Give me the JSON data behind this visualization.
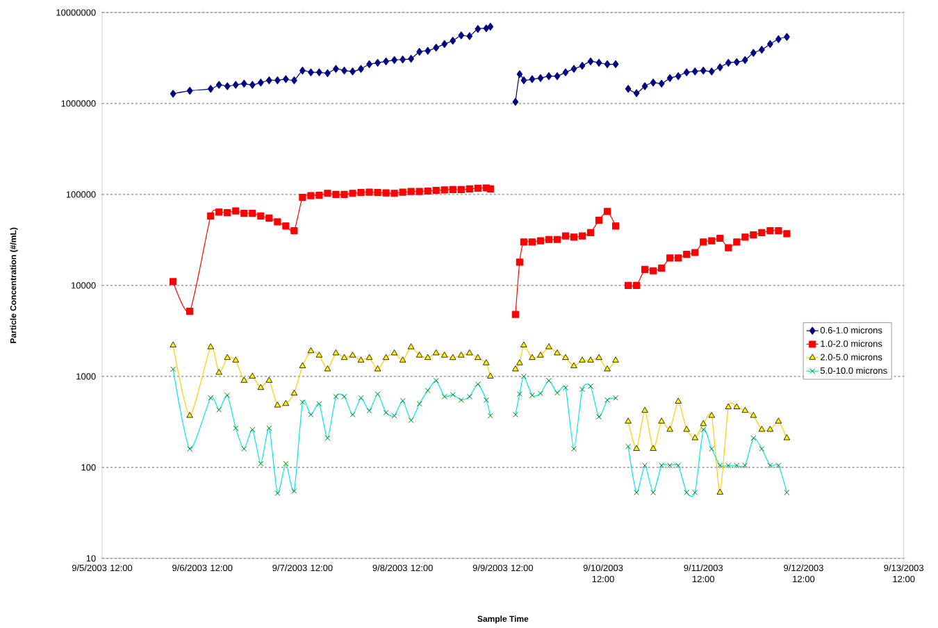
{
  "chart_data": {
    "type": "line",
    "xlabel": "Sample Time",
    "ylabel": "Particle Concentration (#/mL)",
    "log": "y",
    "grid": "y",
    "legend": "right",
    "xlim": [
      "2003-09-05T12:00",
      "2003-09-13T12:00"
    ],
    "xticks": [
      {
        "value": "2003-09-05T12:00",
        "label": "9/5/2003 12:00"
      },
      {
        "value": "2003-09-06T12:00",
        "label": "9/6/2003 12:00"
      },
      {
        "value": "2003-09-07T12:00",
        "label": "9/7/2003 12:00"
      },
      {
        "value": "2003-09-08T12:00",
        "label": "9/8/2003 12:00"
      },
      {
        "value": "2003-09-09T12:00",
        "label": "9/9/2003 12:00"
      },
      {
        "value": "2003-09-10T12:00",
        "label": "9/10/2003 12:00"
      },
      {
        "value": "2003-09-11T12:00",
        "label": "9/11/2003 12:00"
      },
      {
        "value": "2003-09-12T12:00",
        "label": "9/12/2003 12:00"
      },
      {
        "value": "2003-09-13T12:00",
        "label": "9/13/2003 12:00"
      }
    ],
    "ylim": [
      10,
      10000000
    ],
    "yticks": [
      10,
      100,
      1000,
      10000,
      100000,
      1000000,
      10000000
    ],
    "x": [
      "2003-09-06T05:00",
      "2003-09-06T09:00",
      "2003-09-06T14:00",
      "2003-09-06T16:00",
      "2003-09-06T18:00",
      "2003-09-06T20:00",
      "2003-09-06T22:00",
      "2003-09-07T00:00",
      "2003-09-07T02:00",
      "2003-09-07T04:00",
      "2003-09-07T06:00",
      "2003-09-07T08:00",
      "2003-09-07T10:00",
      "2003-09-07T12:00",
      "2003-09-07T14:00",
      "2003-09-07T16:00",
      "2003-09-07T18:00",
      "2003-09-07T20:00",
      "2003-09-07T22:00",
      "2003-09-08T00:00",
      "2003-09-08T02:00",
      "2003-09-08T04:00",
      "2003-09-08T06:00",
      "2003-09-08T08:00",
      "2003-09-08T10:00",
      "2003-09-08T12:00",
      "2003-09-08T14:00",
      "2003-09-08T16:00",
      "2003-09-08T18:00",
      "2003-09-08T20:00",
      "2003-09-08T22:00",
      "2003-09-09T00:00",
      "2003-09-09T02:00",
      "2003-09-09T04:00",
      "2003-09-09T06:00",
      "2003-09-09T08:00",
      "2003-09-09T09:00",
      "2003-09-09T12:00",
      "2003-09-09T15:00",
      "2003-09-09T16:00",
      "2003-09-09T17:00",
      "2003-09-09T19:00",
      "2003-09-09T21:00",
      "2003-09-09T23:00",
      "2003-09-10T01:00",
      "2003-09-10T03:00",
      "2003-09-10T05:00",
      "2003-09-10T07:00",
      "2003-09-10T09:00",
      "2003-09-10T11:00",
      "2003-09-10T13:00",
      "2003-09-10T15:00",
      "2003-09-10T17:00",
      "2003-09-10T18:00",
      "2003-09-10T20:00",
      "2003-09-10T22:00",
      "2003-09-11T00:00",
      "2003-09-11T02:00",
      "2003-09-11T04:00",
      "2003-09-11T06:00",
      "2003-09-11T08:00",
      "2003-09-11T10:00",
      "2003-09-11T12:00",
      "2003-09-11T14:00",
      "2003-09-11T16:00",
      "2003-09-11T18:00",
      "2003-09-11T20:00",
      "2003-09-11T22:00",
      "2003-09-12T00:00",
      "2003-09-12T02:00",
      "2003-09-12T04:00",
      "2003-09-12T06:00",
      "2003-09-12T08:00"
    ],
    "series": [
      {
        "name": "0.6-1.0 microns",
        "color": "#000080",
        "marker": "diamond",
        "values": [
          1280000,
          1380000,
          1450000,
          1600000,
          1550000,
          1600000,
          1650000,
          1600000,
          1700000,
          1800000,
          1800000,
          1850000,
          1800000,
          2300000,
          2200000,
          2200000,
          2150000,
          2400000,
          2300000,
          2250000,
          2400000,
          2700000,
          2800000,
          2900000,
          3000000,
          3050000,
          3100000,
          3700000,
          3800000,
          4100000,
          4500000,
          4900000,
          5600000,
          5500000,
          6600000,
          6700000,
          7000000,
          null,
          1040000,
          2100000,
          1800000,
          1850000,
          1900000,
          2000000,
          2000000,
          2200000,
          2400000,
          2600000,
          2900000,
          2800000,
          2700000,
          2700000,
          null,
          1450000,
          1300000,
          1550000,
          1700000,
          1650000,
          1900000,
          2000000,
          2200000,
          2250000,
          2300000,
          2250000,
          2500000,
          2800000,
          2850000,
          3000000,
          3600000,
          3900000,
          4500000,
          5100000,
          5400000
        ]
      },
      {
        "name": "1.0-2.0 microns",
        "color": "#ff0000",
        "marker": "square",
        "values": [
          11000,
          5200,
          58000,
          64000,
          63000,
          66000,
          62000,
          62000,
          58000,
          55000,
          50000,
          45000,
          40000,
          93000,
          97000,
          98000,
          103000,
          100000,
          100000,
          103000,
          105000,
          106000,
          105000,
          104000,
          103000,
          106000,
          108000,
          108000,
          109000,
          111000,
          112000,
          113000,
          113000,
          115000,
          117000,
          118000,
          115000,
          null,
          4800,
          18000,
          30000,
          30000,
          31000,
          32000,
          32000,
          35000,
          34000,
          35000,
          38000,
          52000,
          65000,
          45000,
          null,
          10000,
          10000,
          15000,
          14500,
          15500,
          20000,
          20000,
          22000,
          23000,
          30000,
          31000,
          33000,
          26000,
          30000,
          34000,
          36000,
          38000,
          40000,
          40000,
          37000
        ]
      },
      {
        "name": "2.0-5.0 microns",
        "color": "#ffcc00",
        "marker": "triangle",
        "values": [
          2200,
          370,
          2100,
          1100,
          1600,
          1500,
          900,
          1000,
          750,
          900,
          480,
          500,
          650,
          1300,
          1900,
          1700,
          1200,
          1800,
          1600,
          1700,
          1500,
          1600,
          1200,
          1600,
          1800,
          1500,
          2100,
          1700,
          1600,
          1800,
          1700,
          1600,
          1700,
          1800,
          1600,
          1400,
          1000,
          null,
          1200,
          1400,
          2200,
          1600,
          1700,
          2100,
          1800,
          1600,
          1300,
          1500,
          1500,
          1600,
          1200,
          1500,
          null,
          320,
          160,
          420,
          160,
          320,
          260,
          530,
          260,
          210,
          300,
          370,
          53,
          460,
          460,
          420,
          370,
          260,
          260,
          320,
          210
        ]
      },
      {
        "name": "5.0-10.0 microns",
        "color": "#00e5ee",
        "marker": "cross",
        "values": [
          1200,
          160,
          580,
          430,
          620,
          270,
          160,
          260,
          110,
          270,
          52,
          110,
          55,
          520,
          380,
          500,
          210,
          600,
          600,
          380,
          580,
          420,
          640,
          400,
          370,
          540,
          330,
          500,
          700,
          900,
          600,
          630,
          550,
          600,
          820,
          550,
          370,
          null,
          380,
          640,
          1000,
          620,
          650,
          900,
          660,
          750,
          160,
          720,
          780,
          360,
          550,
          580,
          null,
          170,
          53,
          105,
          53,
          105,
          105,
          105,
          53,
          53,
          260,
          160,
          105,
          105,
          105,
          105,
          210,
          160,
          105,
          105,
          53
        ]
      }
    ]
  }
}
